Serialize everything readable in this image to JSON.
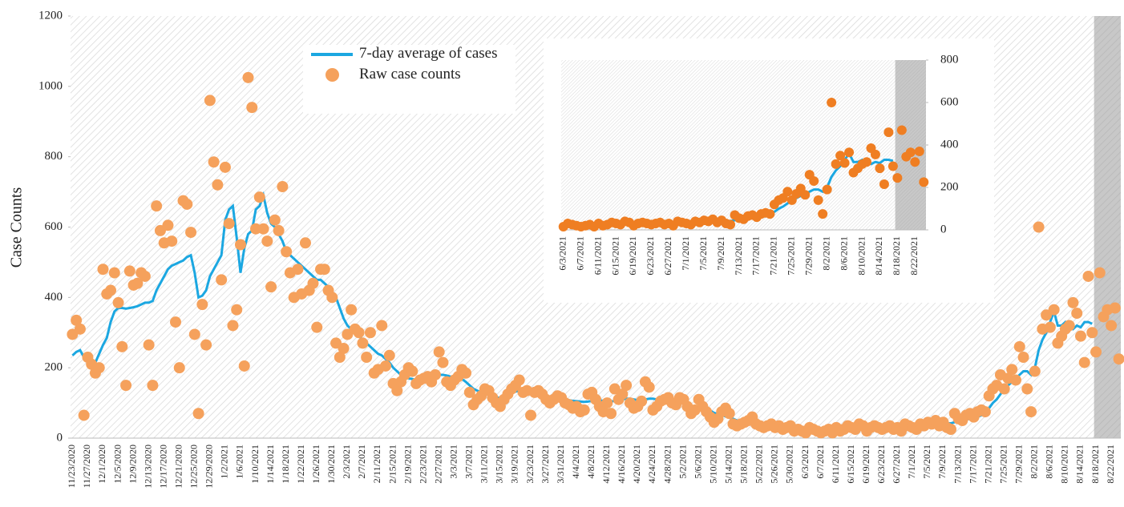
{
  "chart_data": [
    {
      "type": "line",
      "ylabel": "Case Counts",
      "ylim": [
        0,
        1200
      ],
      "yticks": [
        0,
        200,
        400,
        600,
        800,
        1000,
        1200
      ],
      "legend": "top",
      "shade_from": "8/18/2021",
      "categories": [
        "11/23/2020",
        null,
        null,
        null,
        "11/27/2020",
        null,
        null,
        null,
        "12/1/2020",
        null,
        null,
        null,
        "12/5/2020",
        null,
        null,
        null,
        "12/9/2020",
        null,
        null,
        null,
        "12/13/2020",
        null,
        null,
        null,
        "12/17/2020",
        null,
        null,
        null,
        "12/21/2020",
        null,
        null,
        null,
        "12/25/2020",
        null,
        null,
        null,
        "12/29/2020",
        null,
        null,
        null,
        "1/2/2021",
        null,
        null,
        null,
        "1/6/2021",
        null,
        null,
        null,
        "1/10/2021",
        null,
        null,
        null,
        "1/14/2021",
        null,
        null,
        null,
        "1/18/2021",
        null,
        null,
        null,
        "1/22/2021",
        null,
        null,
        null,
        "1/26/2021",
        null,
        null,
        null,
        "1/30/2021",
        null,
        null,
        null,
        "2/3/2021",
        null,
        null,
        null,
        "2/7/2021",
        null,
        null,
        null,
        "2/11/2021",
        null,
        null,
        null,
        "2/15/2021",
        null,
        null,
        null,
        "2/19/2021",
        null,
        null,
        null,
        "2/23/2021",
        null,
        null,
        null,
        "2/27/2021",
        null,
        null,
        null,
        "3/3/2021",
        null,
        null,
        null,
        "3/7/2021",
        null,
        null,
        null,
        "3/11/2021",
        null,
        null,
        null,
        "3/15/2021",
        null,
        null,
        null,
        "3/19/2021",
        null,
        null,
        null,
        "3/23/2021",
        null,
        null,
        null,
        "3/27/2021",
        null,
        null,
        null,
        "3/31/2021",
        null,
        null,
        null,
        "4/4/2021",
        null,
        null,
        null,
        "4/8/2021",
        null,
        null,
        null,
        "4/12/2021",
        null,
        null,
        null,
        "4/16/2021",
        null,
        null,
        null,
        "4/20/2021",
        null,
        null,
        null,
        "4/24/2021",
        null,
        null,
        null,
        "4/28/2021",
        null,
        null,
        null,
        "5/2/2021",
        null,
        null,
        null,
        "5/6/2021",
        null,
        null,
        null,
        "5/10/2021",
        null,
        null,
        null,
        "5/14/2021",
        null,
        null,
        null,
        "5/18/2021",
        null,
        null,
        null,
        "5/22/2021",
        null,
        null,
        null,
        "5/26/2021",
        null,
        null,
        null,
        "5/30/2021",
        null,
        null,
        null,
        "6/3/2021",
        null,
        null,
        null,
        "6/7/2021",
        null,
        null,
        null,
        "6/11/2021",
        null,
        null,
        null,
        "6/15/2021",
        null,
        null,
        null,
        "6/19/2021",
        null,
        null,
        null,
        "6/23/2021",
        null,
        null,
        null,
        "6/27/2021",
        null,
        null,
        null,
        "7/1/2021",
        null,
        null,
        null,
        "7/5/2021",
        null,
        null,
        null,
        "7/9/2021",
        null,
        null,
        null,
        "7/13/2021",
        null,
        null,
        null,
        "7/17/2021",
        null,
        null,
        null,
        "7/21/2021",
        null,
        null,
        null,
        "7/25/2021",
        null,
        null,
        null,
        "7/29/2021",
        null,
        null,
        null,
        "8/2/2021",
        null,
        null,
        null,
        "8/6/2021",
        null,
        null,
        null,
        "8/10/2021",
        null,
        null,
        null,
        "8/14/2021",
        null,
        null,
        null,
        "8/18/2021",
        null,
        null,
        null,
        "8/22/2021",
        null,
        null
      ],
      "series": [
        {
          "name": "7-day average of cases",
          "color": "#1ba7e1",
          "mode": "line",
          "values": [
            235,
            245,
            250,
            230,
            225,
            220,
            215,
            240,
            265,
            285,
            330,
            360,
            370,
            370,
            368,
            370,
            372,
            375,
            380,
            385,
            385,
            390,
            420,
            440,
            460,
            480,
            490,
            495,
            500,
            505,
            515,
            520,
            470,
            400,
            405,
            420,
            460,
            480,
            500,
            520,
            620,
            650,
            660,
            570,
            470,
            540,
            580,
            590,
            650,
            660,
            690,
            640,
            610,
            600,
            580,
            560,
            530,
            520,
            510,
            500,
            490,
            480,
            470,
            460,
            450,
            450,
            440,
            430,
            410,
            400,
            370,
            340,
            320,
            310,
            300,
            290,
            280,
            270,
            260,
            250,
            240,
            235,
            225,
            215,
            200,
            190,
            180,
            175,
            170,
            168,
            165,
            168,
            170,
            175,
            178,
            178,
            180,
            180,
            178,
            175,
            172,
            170,
            168,
            160,
            150,
            140,
            135,
            130,
            128,
            125,
            120,
            115,
            115,
            118,
            122,
            128,
            132,
            135,
            135,
            133,
            130,
            128,
            125,
            120,
            115,
            112,
            110,
            110,
            110,
            110,
            108,
            106,
            105,
            104,
            103,
            104,
            106,
            108,
            108,
            106,
            105,
            104,
            106,
            108,
            110,
            112,
            112,
            110,
            108,
            108,
            110,
            112,
            112,
            110,
            108,
            106,
            104,
            102,
            100,
            100,
            98,
            95,
            92,
            90,
            88,
            85,
            82,
            78,
            72,
            68,
            65,
            62,
            58,
            55,
            50,
            48,
            45,
            42,
            40,
            38,
            36,
            34,
            32,
            30,
            30,
            28,
            27,
            26,
            25,
            24,
            24,
            23,
            22,
            22,
            21,
            20,
            20,
            20,
            21,
            21,
            22,
            22,
            23,
            24,
            25,
            26,
            27,
            28,
            28,
            28,
            29,
            29,
            30,
            30,
            30,
            30,
            30,
            30,
            30,
            30,
            30,
            30,
            32,
            34,
            36,
            38,
            40,
            40,
            42,
            42,
            42,
            45,
            48,
            50,
            52,
            55,
            58,
            60,
            65,
            72,
            85,
            100,
            110,
            125,
            140,
            150,
            160,
            170,
            180,
            190,
            190,
            180,
            200,
            250,
            280,
            300,
            330,
            360,
            320,
            320,
            330,
            320,
            310,
            320,
            315,
            330,
            330,
            325,
            null,
            null,
            null,
            null,
            null,
            null,
            null
          ]
        },
        {
          "name": "Raw case counts",
          "color": "#f5a15c",
          "mode": "markers",
          "values": [
            295,
            335,
            310,
            65,
            230,
            210,
            185,
            200,
            480,
            410,
            420,
            470,
            385,
            260,
            150,
            475,
            435,
            440,
            470,
            460,
            265,
            150,
            660,
            590,
            555,
            605,
            560,
            330,
            200,
            675,
            665,
            585,
            295,
            70,
            380,
            265,
            960,
            785,
            720,
            450,
            770,
            610,
            320,
            365,
            550,
            205,
            1025,
            940,
            595,
            685,
            595,
            560,
            430,
            620,
            590,
            715,
            530,
            470,
            400,
            480,
            410,
            555,
            420,
            440,
            315,
            480,
            480,
            420,
            400,
            270,
            230,
            255,
            295,
            365,
            310,
            300,
            270,
            230,
            300,
            185,
            195,
            320,
            205,
            235,
            155,
            135,
            160,
            180,
            200,
            190,
            155,
            165,
            170,
            175,
            160,
            180,
            245,
            215,
            160,
            150,
            165,
            175,
            195,
            185,
            130,
            95,
            110,
            120,
            140,
            135,
            115,
            100,
            90,
            110,
            125,
            140,
            150,
            165,
            130,
            135,
            65,
            130,
            135,
            125,
            110,
            100,
            110,
            120,
            115,
            100,
            95,
            85,
            90,
            75,
            80,
            125,
            130,
            110,
            90,
            75,
            100,
            70,
            140,
            110,
            125,
            150,
            100,
            85,
            90,
            105,
            160,
            145,
            80,
            90,
            105,
            110,
            115,
            100,
            95,
            115,
            110,
            90,
            70,
            80,
            110,
            90,
            75,
            60,
            45,
            55,
            75,
            85,
            70,
            40,
            35,
            40,
            45,
            50,
            60,
            40,
            35,
            30,
            35,
            40,
            30,
            35,
            25,
            30,
            35,
            20,
            25,
            20,
            15,
            30,
            25,
            20,
            15,
            20,
            25,
            15,
            30,
            20,
            25,
            35,
            30,
            25,
            40,
            35,
            20,
            30,
            35,
            30,
            25,
            30,
            35,
            25,
            30,
            20,
            40,
            35,
            30,
            25,
            40,
            35,
            45,
            40,
            50,
            35,
            45,
            30,
            25,
            70,
            55,
            50,
            65,
            70,
            60,
            75,
            80,
            75,
            120,
            140,
            150,
            180,
            140,
            170,
            195,
            165,
            260,
            230,
            140,
            75,
            190,
            600,
            310,
            350,
            315,
            365,
            270,
            290,
            310,
            320,
            385,
            355,
            290,
            215,
            460,
            300,
            245,
            470,
            345,
            365,
            320,
            370,
            225
          ]
        }
      ]
    },
    {
      "type": "line",
      "ylim": [
        0,
        800
      ],
      "yticks": [
        0,
        200,
        400,
        600,
        800
      ],
      "shade_from": "8/18/2021",
      "categories": [
        "6/3/2021",
        null,
        null,
        null,
        "6/7/2021",
        null,
        null,
        null,
        "6/11/2021",
        null,
        null,
        null,
        "6/15/2021",
        null,
        null,
        null,
        "6/19/2021",
        null,
        null,
        null,
        "6/23/2021",
        null,
        null,
        null,
        "6/27/2021",
        null,
        null,
        null,
        "7/1/2021",
        null,
        null,
        null,
        "7/5/2021",
        null,
        null,
        null,
        "7/9/2021",
        null,
        null,
        null,
        "7/13/2021",
        null,
        null,
        null,
        "7/17/2021",
        null,
        null,
        null,
        "7/21/2021",
        null,
        null,
        null,
        "7/25/2021",
        null,
        null,
        null,
        "7/29/2021",
        null,
        null,
        null,
        "8/2/2021",
        null,
        null,
        null,
        "8/6/2021",
        null,
        null,
        null,
        "8/10/2021",
        null,
        null,
        null,
        "8/14/2021",
        null,
        null,
        null,
        "8/18/2021",
        null,
        null,
        null,
        "8/22/2021",
        null,
        null
      ],
      "series": [
        {
          "color": "#1ba7e1",
          "mode": "line",
          "values": [
            22,
            22,
            21,
            20,
            20,
            20,
            21,
            21,
            22,
            22,
            23,
            24,
            25,
            26,
            27,
            28,
            28,
            28,
            29,
            29,
            30,
            30,
            30,
            30,
            30,
            30,
            30,
            30,
            30,
            30,
            32,
            34,
            36,
            38,
            40,
            40,
            42,
            42,
            42,
            45,
            48,
            50,
            52,
            55,
            58,
            60,
            65,
            72,
            85,
            100,
            110,
            125,
            140,
            150,
            160,
            170,
            180,
            190,
            190,
            180,
            200,
            250,
            280,
            300,
            330,
            360,
            320,
            320,
            330,
            320,
            310,
            320,
            315,
            330,
            330,
            325,
            null,
            null,
            null,
            null,
            null,
            null,
            null
          ]
        },
        {
          "color": "#ef7e22",
          "mode": "markers",
          "values": [
            15,
            30,
            25,
            20,
            15,
            20,
            25,
            15,
            30,
            20,
            25,
            35,
            30,
            25,
            40,
            35,
            20,
            30,
            35,
            30,
            25,
            30,
            35,
            25,
            30,
            20,
            40,
            35,
            30,
            25,
            40,
            35,
            45,
            40,
            50,
            35,
            45,
            30,
            25,
            70,
            55,
            50,
            65,
            70,
            60,
            75,
            80,
            75,
            120,
            140,
            150,
            180,
            140,
            170,
            195,
            165,
            260,
            230,
            140,
            75,
            190,
            600,
            310,
            350,
            315,
            365,
            270,
            290,
            310,
            320,
            385,
            355,
            290,
            215,
            460,
            300,
            245,
            470,
            345,
            365,
            320,
            370,
            225
          ]
        }
      ]
    }
  ]
}
